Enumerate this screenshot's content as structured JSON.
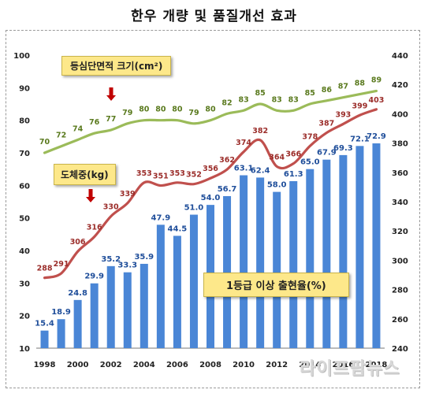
{
  "title": "한우 개량 및 품질개선 효과",
  "watermark": "라이프팜뉴스",
  "colors": {
    "bars": "#4a86d6",
    "bar_labels": "#1f4e9a",
    "weight_line": "#c0504d",
    "weight_labels": "#9b2d2a",
    "area_line": "#9bbb59",
    "area_labels": "#5a7a1e",
    "arrow": "#c00000",
    "callout_fill": "#fde88a"
  },
  "chart_data": {
    "type": "bar+line",
    "x_ticks": [
      "1998",
      "2000",
      "2002",
      "2004",
      "2006",
      "2008",
      "2010",
      "2012",
      "2014",
      "2016",
      "2018"
    ],
    "left_axis": {
      "ylim": [
        10,
        100
      ],
      "ticks": [
        10,
        20,
        30,
        40,
        50,
        60,
        70,
        80,
        90,
        100
      ]
    },
    "right_axis": {
      "ylim": [
        240,
        440
      ],
      "ticks": [
        240,
        260,
        280,
        300,
        320,
        340,
        360,
        380,
        400,
        420,
        440
      ]
    },
    "years": [
      1998,
      1999,
      2000,
      2001,
      2002,
      2003,
      2004,
      2005,
      2006,
      2007,
      2008,
      2009,
      2010,
      2011,
      2012,
      2013,
      2014,
      2015,
      2016,
      2017,
      2018
    ],
    "series": [
      {
        "name": "1등급 이상 출현율(%)",
        "type": "bar",
        "axis": "left",
        "values": [
          15.4,
          18.9,
          24.8,
          29.9,
          35.2,
          33.3,
          35.9,
          47.9,
          44.5,
          51.0,
          54.0,
          56.7,
          63.1,
          62.4,
          58.0,
          61.3,
          65.0,
          67.9,
          69.3,
          72.1,
          72.9
        ],
        "labels": [
          "15.4",
          "18.9",
          "24.8",
          "29.9",
          "35.2",
          "33.3",
          "35.9",
          "47.9",
          "44.5",
          "51.0",
          "54.0",
          "56.7",
          "63.1",
          "62.4",
          "58.0",
          "61.3",
          "65.0",
          "67.9",
          "69.3",
          "72.1",
          "72.9"
        ]
      },
      {
        "name": "도체중(kg)",
        "type": "line",
        "axis": "right",
        "values": [
          288,
          291,
          306,
          316,
          330,
          339,
          353,
          351,
          353,
          352,
          356,
          362,
          374,
          382,
          364,
          366,
          378,
          387,
          393,
          399,
          403
        ],
        "labels": [
          "288",
          "291",
          "306",
          "316",
          "330",
          "339",
          "353",
          "351",
          "353",
          "352",
          "356",
          "362",
          "374",
          "382",
          "364",
          "366",
          "378",
          "387",
          "393",
          "399",
          "403"
        ]
      },
      {
        "name": "등심단면적 크기(cm²)",
        "type": "line",
        "axis": "left",
        "values": [
          70,
          72,
          74,
          76,
          77,
          79,
          80,
          80,
          80,
          79,
          80,
          82,
          83,
          85,
          83,
          83,
          85,
          86,
          87,
          88,
          89
        ],
        "labels": [
          "70",
          "72",
          "74",
          "76",
          "77",
          "79",
          "80",
          "80",
          "80",
          "79",
          "80",
          "82",
          "83",
          "85",
          "83",
          "83",
          "85",
          "86",
          "87",
          "88",
          "89"
        ]
      }
    ],
    "callouts": {
      "area": "등심단면적 크기(cm²)",
      "weight": "도체중(kg)",
      "grade": "1등급 이상 출현율(%)"
    }
  }
}
